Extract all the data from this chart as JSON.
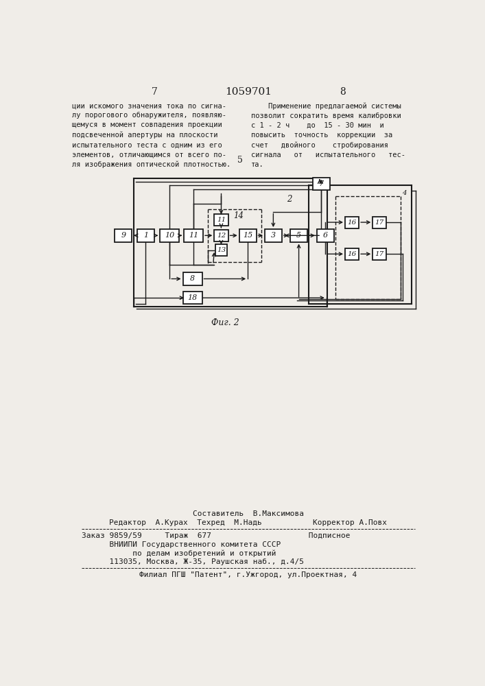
{
  "page_number_left": "7",
  "page_number_center": "1059701",
  "page_number_right": "8",
  "text_left": "ции искомого значения тока по сигна-\nлу порогового обнаружителя, появляю-\nщемуся в момент совпадения проекции\nподсвеченной апертуры на плоскости\nиспытательного теста с одним из его\nэлементов, отличающимся от всего по-\nля изображения оптической плотностью.",
  "text_right": "    Применение предлагаемой системы\nпозволит сократить время калибровки\nс 1 - 2 ч    до  15 - 30 мин  и\nповысить  точность  коррекции  за\nсчет   двойного    стробирования\nсигнала   от   испытательного   тес-\nта.",
  "number_5": "5",
  "fig_caption": "Фиг. 2",
  "footer_line1": "Составитель  В.Максимова",
  "footer_line2": "Редактор  А.Курах  Техред  М.Надь           Корректор А.Повх",
  "footer_line3": "Заказ 9859/59     Тираж  677                     Подписное",
  "footer_line4": "      ВНИИПИ Государственного комитета СССР",
  "footer_line5": "           по делам изобретений и открытий",
  "footer_line6": "      113035, Москва, Ж-35, Раушская наб., д.4/5",
  "footer_line7": "Филиал ПГШ \"Патент\", г.Ужгород, ул.Проектная, 4",
  "bg_color": "#f0ede8",
  "text_color": "#1a1a1a",
  "box_color": "#1a1a1a"
}
